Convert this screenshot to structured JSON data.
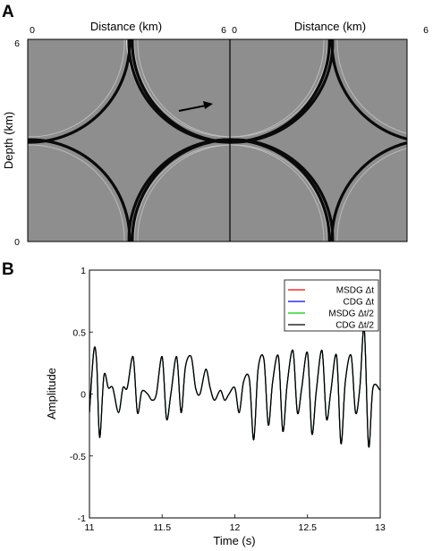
{
  "panel_a": {
    "letter": "A",
    "top_axis_label": "Distance (km)",
    "left_axis_label": "Depth (km)",
    "ticks": {
      "left_of_panel": "0",
      "right_of_panel": "6",
      "depth_top": "6",
      "depth_bottom": "0"
    }
  },
  "panel_b": {
    "letter": "B"
  },
  "chart_data": {
    "type": "line",
    "xlabel": "Time (s)",
    "ylabel": "Amplitude",
    "xlim": [
      11,
      13
    ],
    "ylim": [
      -1,
      1
    ],
    "xticks": [
      11,
      11.5,
      12,
      12.5,
      13
    ],
    "xtick_labels": [
      "11",
      "11.5",
      "12",
      "12.5",
      "13"
    ],
    "yticks": [
      -1,
      -0.5,
      0,
      0.5,
      1
    ],
    "ytick_labels": [
      "-1",
      "-0.5",
      "0",
      "0.5",
      "1"
    ],
    "legend_position": "top-right",
    "series": [
      {
        "name": "MSDG Δt",
        "color": "#ff0000"
      },
      {
        "name": "CDG Δt",
        "color": "#0000ff"
      },
      {
        "name": "MSDG Δt/2",
        "color": "#00cc00"
      },
      {
        "name": "CDG Δt/2",
        "color": "#000000"
      }
    ],
    "x": [
      11.0,
      11.03,
      11.05,
      11.07,
      11.1,
      11.13,
      11.16,
      11.2,
      11.23,
      11.26,
      11.3,
      11.33,
      11.36,
      11.4,
      11.43,
      11.46,
      11.5,
      11.53,
      11.56,
      11.6,
      11.63,
      11.66,
      11.7,
      11.73,
      11.76,
      11.8,
      11.83,
      11.86,
      11.9,
      11.93,
      11.96,
      12.0,
      12.03,
      12.06,
      12.1,
      12.13,
      12.16,
      12.2,
      12.23,
      12.26,
      12.3,
      12.33,
      12.36,
      12.4,
      12.43,
      12.46,
      12.5,
      12.53,
      12.56,
      12.6,
      12.63,
      12.66,
      12.7,
      12.73,
      12.76,
      12.8,
      12.83,
      12.86,
      12.89,
      12.92,
      12.95,
      13.0
    ],
    "values": [
      -0.15,
      0.35,
      0.25,
      -0.35,
      0.15,
      0.05,
      0.05,
      -0.15,
      0.05,
      0.05,
      0.3,
      -0.15,
      0.02,
      0.0,
      -0.05,
      0.0,
      0.3,
      -0.2,
      0.0,
      0.3,
      -0.15,
      0.22,
      0.3,
      0.05,
      0.0,
      0.2,
      0.05,
      -0.05,
      0.03,
      -0.05,
      0.0,
      0.05,
      -0.15,
      0.1,
      0.12,
      -0.37,
      0.2,
      0.28,
      -0.25,
      0.1,
      0.3,
      -0.3,
      0.08,
      0.35,
      -0.15,
      0.05,
      0.33,
      -0.32,
      0.02,
      0.35,
      -0.2,
      0.02,
      0.31,
      -0.4,
      0.1,
      0.31,
      -0.15,
      0.05,
      0.53,
      -0.42,
      0.05,
      0.03
    ]
  }
}
